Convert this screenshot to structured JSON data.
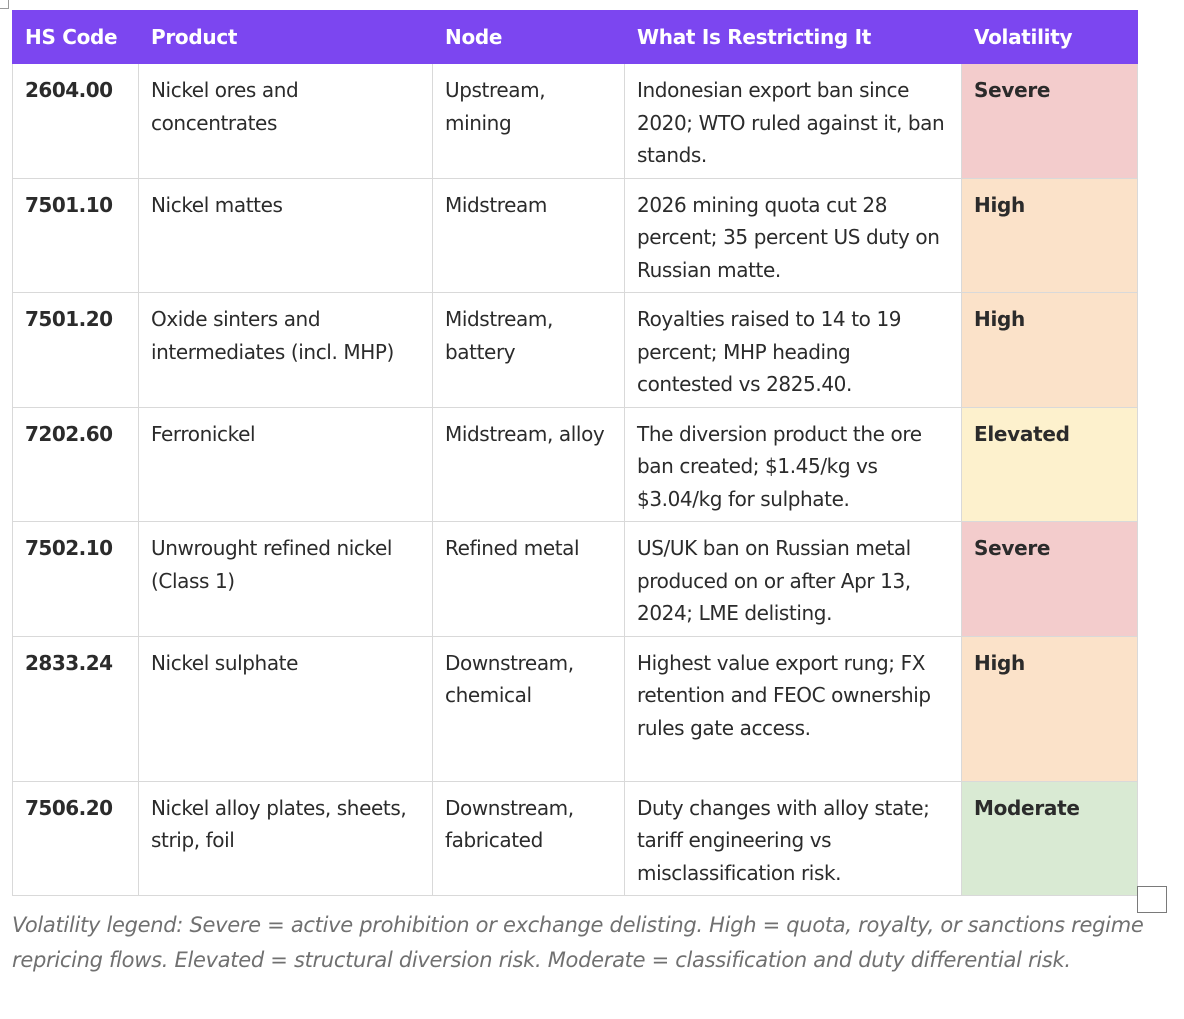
{
  "table": {
    "headers": [
      "HS Code",
      "Product",
      "Node",
      "What Is Restricting It",
      "Volatility"
    ],
    "rows": [
      {
        "code": "2604.00",
        "product": "Nickel ores and concentrates",
        "node": "Upstream, mining",
        "restriction": "Indonesian export ban since 2020; WTO ruled against it, ban stands.",
        "volatility": "Severe"
      },
      {
        "code": "7501.10",
        "product": "Nickel mattes",
        "node": "Midstream",
        "restriction": "2026 mining quota cut 28 percent; 35 percent US duty on Russian matte.",
        "volatility": "High"
      },
      {
        "code": "7501.20",
        "product": "Oxide sinters and intermediates (incl. MHP)",
        "node": "Midstream, battery",
        "restriction": "Royalties raised to 14 to 19 percent; MHP heading contested vs 2825.40.",
        "volatility": "High"
      },
      {
        "code": "7202.60",
        "product": "Ferronickel",
        "node": "Midstream, alloy",
        "restriction": "The diversion product the ore ban created; $1.45/kg vs $3.04/kg for sulphate.",
        "volatility": "Elevated"
      },
      {
        "code": "7502.10",
        "product": "Unwrought refined nickel (Class 1)",
        "node": "Refined metal",
        "restriction": "US/UK ban on Russian metal produced on or after Apr 13, 2024; LME delisting.",
        "volatility": "Severe"
      },
      {
        "code": "2833.24",
        "product": "Nickel sulphate",
        "node": "Downstream, chemical",
        "restriction": "Highest value export rung; FX retention and FEOC ownership rules gate access.",
        "volatility": "High"
      },
      {
        "code": "7506.20",
        "product": "Nickel alloy plates, sheets, strip, foil",
        "node": "Downstream, fabricated",
        "restriction": "Duty changes with alloy state; tariff engineering vs misclassification risk.",
        "volatility": "Moderate"
      }
    ]
  },
  "legend": "Volatility legend: Severe = active prohibition or exchange delisting. High = quota, royalty, or sanctions regime repricing flows. Elevated = structural diversion risk. Moderate = classification and duty differential risk.",
  "colors": {
    "header_bg": "#7c46f0",
    "Severe": "#f3cccc",
    "High": "#fbe2c9",
    "Elevated": "#fdf1cd",
    "Moderate": "#d9ead3"
  }
}
